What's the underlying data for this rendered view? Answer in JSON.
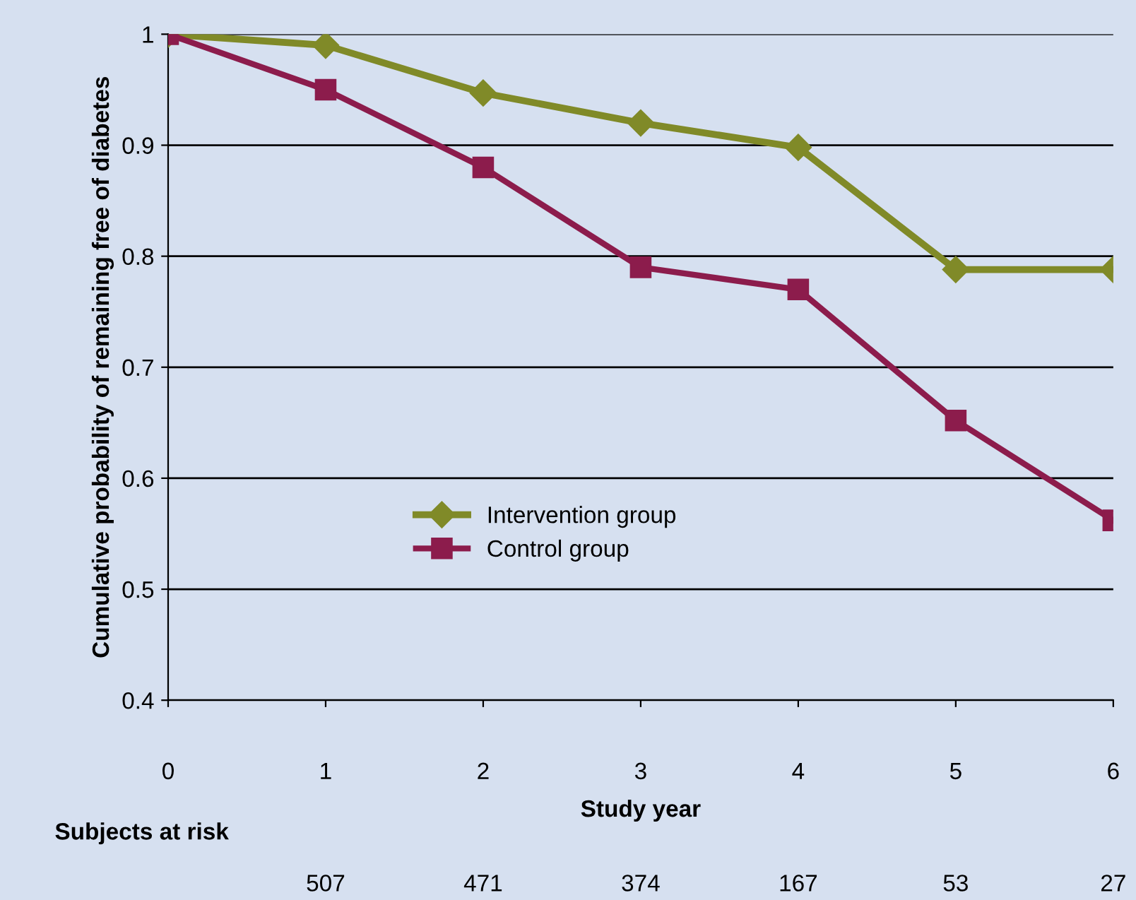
{
  "chart_data": {
    "type": "line",
    "xlabel": "Study year",
    "ylabel": "Cumulative probability of remaining free of diabetes",
    "x": [
      0,
      1,
      2,
      3,
      4,
      5,
      6
    ],
    "series": [
      {
        "name": "Intervention group",
        "color": "#808a28",
        "marker": "diamond",
        "values": [
          1,
          0.99,
          0.947,
          0.92,
          0.898,
          0.788,
          0.788
        ]
      },
      {
        "name": "Control group",
        "color": "#8c1c4c",
        "marker": "square",
        "values": [
          1,
          0.95,
          0.88,
          0.79,
          0.77,
          0.652,
          0.562
        ]
      }
    ],
    "xlim": [
      0,
      6
    ],
    "xticks": [
      0,
      1,
      2,
      3,
      4,
      5,
      6
    ],
    "ylim": [
      0.4,
      1
    ],
    "yticks": [
      0.4,
      0.5,
      0.6,
      0.7,
      0.8,
      0.9,
      1
    ],
    "grid": "y",
    "legend": "center",
    "line_style": "solid",
    "annotations": [
      "Subjects at risk",
      "507",
      "471",
      "374",
      "167",
      "53",
      "27"
    ]
  }
}
